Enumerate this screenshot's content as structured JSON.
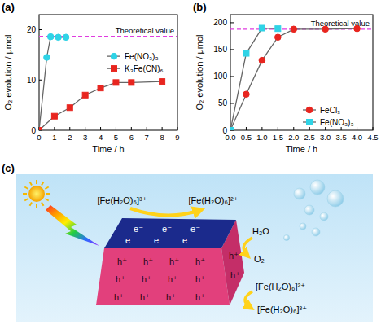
{
  "chart_data": [
    {
      "type": "line",
      "panel": "(a)",
      "x_label": "Time / h",
      "y_label": "O₂ evolution / μmol",
      "xlim": [
        0,
        9
      ],
      "xticks": [
        0,
        1,
        2,
        3,
        4,
        5,
        6,
        7,
        8,
        9
      ],
      "ylim": [
        0,
        23
      ],
      "yticks": [
        0,
        10,
        20
      ],
      "grid": false,
      "legend": "right",
      "series": [
        {
          "name": "Fe(NO₃)₃",
          "color": "#2fd3e6",
          "marker": "circle",
          "x": [
            0,
            0.5,
            0.75,
            1.25,
            1.75
          ],
          "values": [
            0,
            14.5,
            18.6,
            18.5,
            18.5
          ]
        },
        {
          "name": "K₃Fe(CN)₆",
          "color": "#e8251f",
          "marker": "square",
          "x": [
            0,
            1,
            2,
            3,
            4,
            5,
            6,
            8
          ],
          "values": [
            0,
            2.8,
            4.5,
            7,
            8.4,
            9.5,
            9.5,
            9.7
          ]
        }
      ],
      "annotations": [
        {
          "text": "Theoretical value",
          "y": 18.7
        }
      ]
    },
    {
      "type": "line",
      "panel": "(b)",
      "x_label": "Time / h",
      "y_label": "O₂ evolution / μmol",
      "xlim": [
        0,
        4.5
      ],
      "xticks": [
        {
          "value": 0,
          "label": "0.0"
        },
        0.5,
        {
          "value": 1,
          "label": "1.0"
        },
        1.5,
        {
          "value": 2,
          "label": "2.0"
        },
        2.5,
        {
          "value": 3,
          "label": "3.0"
        },
        3.5,
        {
          "value": 4,
          "label": "4.0"
        },
        4.5
      ],
      "ylim": [
        0,
        215
      ],
      "yticks": [
        0,
        50,
        100,
        150,
        200
      ],
      "grid": false,
      "legend": "lower right",
      "series": [
        {
          "name": "FeCl₃",
          "color": "#e8251f",
          "marker": "circle",
          "x": [
            0,
            0.5,
            1,
            1.5,
            2,
            3,
            4
          ],
          "values": [
            0,
            67,
            130,
            173,
            188,
            188,
            189
          ]
        },
        {
          "name": "Fe(NO₃)₃",
          "color": "#2fd3e6",
          "marker": "square",
          "x": [
            0,
            0.5,
            1,
            1.5
          ],
          "values": [
            0,
            143,
            190,
            189
          ]
        }
      ],
      "annotations": [
        {
          "text": "Theoretical value",
          "y": 188
        }
      ]
    }
  ],
  "diagram": {
    "panel": "(c)",
    "reduction": {
      "from": "[Fe(H₂O)₆]³⁺",
      "to": "[Fe(H₂O)₆]²⁺"
    },
    "water_oxidation": {
      "from": "H₂O",
      "to": "O₂"
    },
    "iron_oxidation": {
      "from": "[Fe(H₂O)₆]²⁺",
      "to": "[Fe(H₂O)₆]³⁺"
    },
    "electrons": [
      "e⁻",
      "e⁻",
      "e⁻",
      "e⁻",
      "e⁻",
      "e⁻"
    ],
    "holes": [
      "h⁺",
      "h⁺",
      "h⁺",
      "h⁺",
      "h⁺",
      "h⁺",
      "h⁺",
      "h⁺",
      "h⁺",
      "h⁺",
      "h⁺",
      "h⁺",
      "h⁺",
      "h⁺"
    ]
  }
}
